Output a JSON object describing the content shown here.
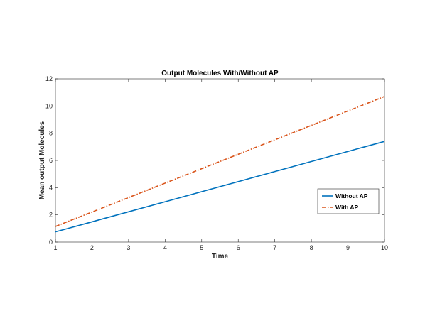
{
  "chart_data": {
    "type": "line",
    "title": "Output Molecules With/Without AP",
    "xlabel": "Time",
    "ylabel": "Mean output Molecules",
    "xlim": [
      1,
      10
    ],
    "ylim": [
      0,
      12
    ],
    "xticks": [
      1,
      2,
      3,
      4,
      5,
      6,
      7,
      8,
      9,
      10
    ],
    "yticks": [
      0,
      2,
      4,
      6,
      8,
      10,
      12
    ],
    "grid": false,
    "legend_position": "right",
    "series": [
      {
        "name": "Without AP",
        "color": "#0072BD",
        "line_style": "solid",
        "x": [
          1,
          10
        ],
        "y": [
          0.75,
          7.4
        ]
      },
      {
        "name": "With AP",
        "color": "#D95319",
        "line_style": "dash-dot",
        "x": [
          1,
          10
        ],
        "y": [
          1.15,
          10.7
        ]
      }
    ]
  }
}
